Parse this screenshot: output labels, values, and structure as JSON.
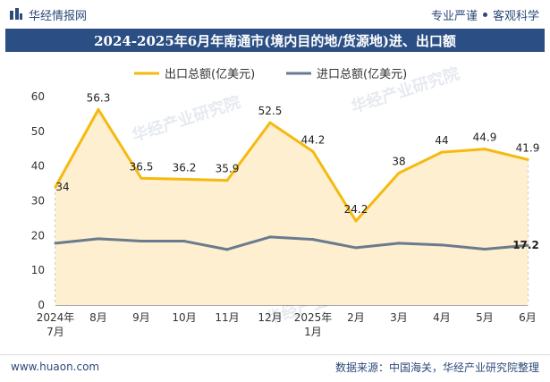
{
  "header": {
    "brand": "华经情报网",
    "tagline_left": "专业严谨",
    "tagline_right": "客观科学"
  },
  "footer": {
    "url": "www.huaon.com",
    "source": "数据来源：中国海关，华经产业研究院整理"
  },
  "watermark": "华经产业研究院",
  "chart_data": {
    "type": "line",
    "title": "2024-2025年6月年南通市(境内目的地/货源地)进、出口额",
    "categories": [
      "2024年\n7月",
      "8月",
      "9月",
      "10月",
      "11月",
      "12月",
      "2025年\n1月",
      "2月",
      "3月",
      "4月",
      "5月",
      "6月"
    ],
    "ylim": [
      0,
      60
    ],
    "yticks": [
      0,
      10,
      20,
      30,
      40,
      50,
      60
    ],
    "legend_position": "top",
    "series": [
      {
        "name": "出口总额(亿美元)",
        "color": "#f6b90e",
        "fill": "#fdefcf",
        "values": [
          34,
          56.3,
          36.5,
          36.2,
          35.9,
          52.5,
          44.2,
          24.2,
          38,
          44,
          44.9,
          41.9
        ],
        "labels": [
          "34",
          "56.3",
          "36.5",
          "36.2",
          "35.9",
          "52.5",
          "44.2",
          "24.2",
          "38",
          "44",
          "44.9",
          "41.9"
        ]
      },
      {
        "name": "进口总额(亿美元)",
        "color": "#6a7a8f",
        "values": [
          17.8,
          19.1,
          18.4,
          18.4,
          16.0,
          19.6,
          18.9,
          16.5,
          17.8,
          17.3,
          16.1,
          17.2
        ],
        "labels": [
          "",
          "",
          "",
          "",
          "",
          "",
          "",
          "",
          "",
          "",
          "",
          "17.2"
        ]
      }
    ]
  }
}
